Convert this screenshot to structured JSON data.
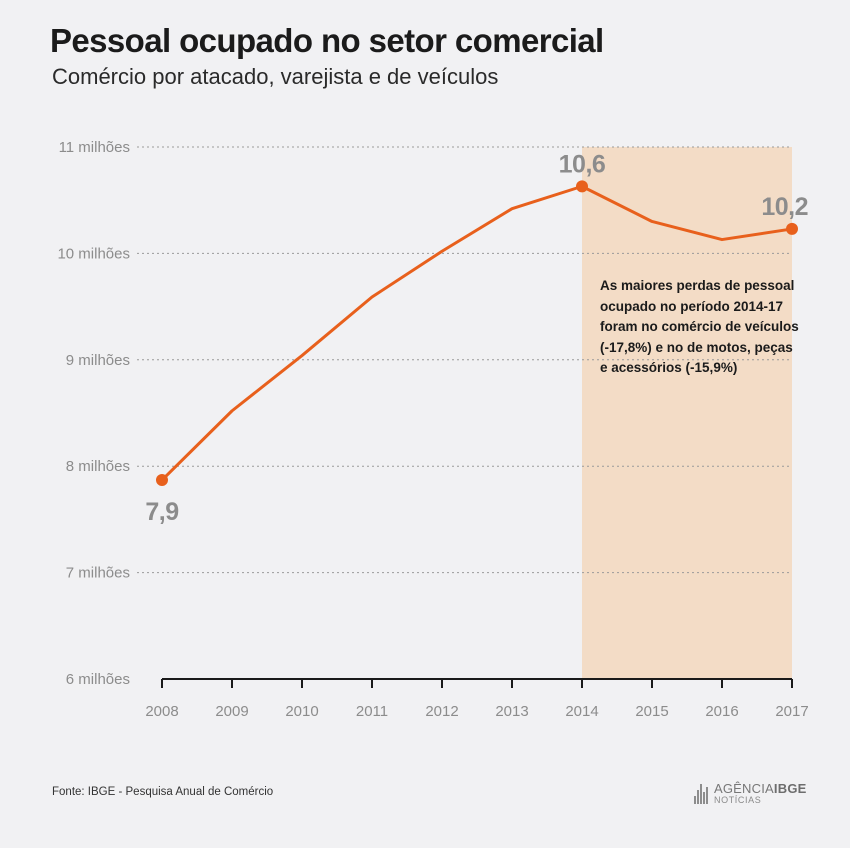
{
  "header": {
    "title": "Pessoal ocupado no setor comercial",
    "subtitle": "Comércio por atacado, varejista e de veículos"
  },
  "chart_data": {
    "type": "line",
    "x": [
      "2008",
      "2009",
      "2010",
      "2011",
      "2012",
      "2013",
      "2014",
      "2015",
      "2016",
      "2017"
    ],
    "series": [
      {
        "values": [
          7.87,
          8.52,
          9.04,
          9.59,
          10.02,
          10.42,
          10.63,
          10.3,
          10.13,
          10.23
        ],
        "color": "#e8601c"
      }
    ],
    "ylim": [
      6,
      11
    ],
    "yticks": [
      6,
      7,
      8,
      9,
      10,
      11
    ],
    "ytick_labels": [
      "6 milhões",
      "7 milhões",
      "8 milhões",
      "9 milhões",
      "10 milhões",
      "11 milhões"
    ],
    "grid": true,
    "highlight_range": {
      "from": "2014",
      "to": "2017",
      "color": "#f3dcc6"
    },
    "data_labels": [
      {
        "x": "2008",
        "text": "7,9",
        "placement": "below"
      },
      {
        "x": "2014",
        "text": "10,6",
        "placement": "above"
      },
      {
        "x": "2017",
        "text": "10,2",
        "placement": "above"
      }
    ],
    "annotation": "As maiores perdas de pessoal ocupado no período 2014-17 foram no comércio de veículos (-17,8%) e no de motos, peças e acessórios (-15,9%)"
  },
  "footer": {
    "source": "Fonte: IBGE - Pesquisa Anual de Comércio",
    "logo_main": "AGÊNCIA",
    "logo_bold": "IBGE",
    "logo_sub": "NOTÍCIAS"
  }
}
